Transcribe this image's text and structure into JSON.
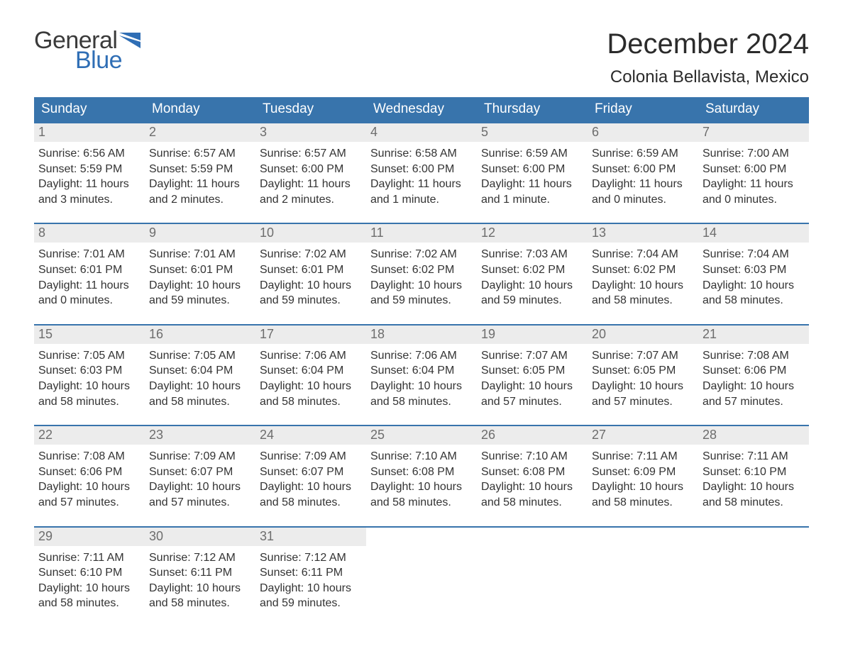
{
  "brand": {
    "part1": "General",
    "part2": "Blue",
    "color_dark": "#3a3a3a",
    "color_blue": "#2f6eb5"
  },
  "title": "December 2024",
  "location": "Colonia Bellavista, Mexico",
  "colors": {
    "header_bg": "#3874ac",
    "header_text": "#ffffff",
    "daynum_bg": "#ececec",
    "daynum_text": "#6d6d6d",
    "body_text": "#333333",
    "row_border": "#3874ac",
    "page_bg": "#ffffff"
  },
  "typography": {
    "title_fontsize": 40,
    "location_fontsize": 24,
    "header_fontsize": 19,
    "daynum_fontsize": 18,
    "body_fontsize": 16,
    "logo_fontsize": 34
  },
  "layout": {
    "columns": 7,
    "rows": 5,
    "cell_flex": 1
  },
  "weekdays": [
    "Sunday",
    "Monday",
    "Tuesday",
    "Wednesday",
    "Thursday",
    "Friday",
    "Saturday"
  ],
  "weeks": [
    [
      {
        "n": "1",
        "sunrise": "Sunrise: 6:56 AM",
        "sunset": "Sunset: 5:59 PM",
        "dl1": "Daylight: 11 hours",
        "dl2": "and 3 minutes."
      },
      {
        "n": "2",
        "sunrise": "Sunrise: 6:57 AM",
        "sunset": "Sunset: 5:59 PM",
        "dl1": "Daylight: 11 hours",
        "dl2": "and 2 minutes."
      },
      {
        "n": "3",
        "sunrise": "Sunrise: 6:57 AM",
        "sunset": "Sunset: 6:00 PM",
        "dl1": "Daylight: 11 hours",
        "dl2": "and 2 minutes."
      },
      {
        "n": "4",
        "sunrise": "Sunrise: 6:58 AM",
        "sunset": "Sunset: 6:00 PM",
        "dl1": "Daylight: 11 hours",
        "dl2": "and 1 minute."
      },
      {
        "n": "5",
        "sunrise": "Sunrise: 6:59 AM",
        "sunset": "Sunset: 6:00 PM",
        "dl1": "Daylight: 11 hours",
        "dl2": "and 1 minute."
      },
      {
        "n": "6",
        "sunrise": "Sunrise: 6:59 AM",
        "sunset": "Sunset: 6:00 PM",
        "dl1": "Daylight: 11 hours",
        "dl2": "and 0 minutes."
      },
      {
        "n": "7",
        "sunrise": "Sunrise: 7:00 AM",
        "sunset": "Sunset: 6:00 PM",
        "dl1": "Daylight: 11 hours",
        "dl2": "and 0 minutes."
      }
    ],
    [
      {
        "n": "8",
        "sunrise": "Sunrise: 7:01 AM",
        "sunset": "Sunset: 6:01 PM",
        "dl1": "Daylight: 11 hours",
        "dl2": "and 0 minutes."
      },
      {
        "n": "9",
        "sunrise": "Sunrise: 7:01 AM",
        "sunset": "Sunset: 6:01 PM",
        "dl1": "Daylight: 10 hours",
        "dl2": "and 59 minutes."
      },
      {
        "n": "10",
        "sunrise": "Sunrise: 7:02 AM",
        "sunset": "Sunset: 6:01 PM",
        "dl1": "Daylight: 10 hours",
        "dl2": "and 59 minutes."
      },
      {
        "n": "11",
        "sunrise": "Sunrise: 7:02 AM",
        "sunset": "Sunset: 6:02 PM",
        "dl1": "Daylight: 10 hours",
        "dl2": "and 59 minutes."
      },
      {
        "n": "12",
        "sunrise": "Sunrise: 7:03 AM",
        "sunset": "Sunset: 6:02 PM",
        "dl1": "Daylight: 10 hours",
        "dl2": "and 59 minutes."
      },
      {
        "n": "13",
        "sunrise": "Sunrise: 7:04 AM",
        "sunset": "Sunset: 6:02 PM",
        "dl1": "Daylight: 10 hours",
        "dl2": "and 58 minutes."
      },
      {
        "n": "14",
        "sunrise": "Sunrise: 7:04 AM",
        "sunset": "Sunset: 6:03 PM",
        "dl1": "Daylight: 10 hours",
        "dl2": "and 58 minutes."
      }
    ],
    [
      {
        "n": "15",
        "sunrise": "Sunrise: 7:05 AM",
        "sunset": "Sunset: 6:03 PM",
        "dl1": "Daylight: 10 hours",
        "dl2": "and 58 minutes."
      },
      {
        "n": "16",
        "sunrise": "Sunrise: 7:05 AM",
        "sunset": "Sunset: 6:04 PM",
        "dl1": "Daylight: 10 hours",
        "dl2": "and 58 minutes."
      },
      {
        "n": "17",
        "sunrise": "Sunrise: 7:06 AM",
        "sunset": "Sunset: 6:04 PM",
        "dl1": "Daylight: 10 hours",
        "dl2": "and 58 minutes."
      },
      {
        "n": "18",
        "sunrise": "Sunrise: 7:06 AM",
        "sunset": "Sunset: 6:04 PM",
        "dl1": "Daylight: 10 hours",
        "dl2": "and 58 minutes."
      },
      {
        "n": "19",
        "sunrise": "Sunrise: 7:07 AM",
        "sunset": "Sunset: 6:05 PM",
        "dl1": "Daylight: 10 hours",
        "dl2": "and 57 minutes."
      },
      {
        "n": "20",
        "sunrise": "Sunrise: 7:07 AM",
        "sunset": "Sunset: 6:05 PM",
        "dl1": "Daylight: 10 hours",
        "dl2": "and 57 minutes."
      },
      {
        "n": "21",
        "sunrise": "Sunrise: 7:08 AM",
        "sunset": "Sunset: 6:06 PM",
        "dl1": "Daylight: 10 hours",
        "dl2": "and 57 minutes."
      }
    ],
    [
      {
        "n": "22",
        "sunrise": "Sunrise: 7:08 AM",
        "sunset": "Sunset: 6:06 PM",
        "dl1": "Daylight: 10 hours",
        "dl2": "and 57 minutes."
      },
      {
        "n": "23",
        "sunrise": "Sunrise: 7:09 AM",
        "sunset": "Sunset: 6:07 PM",
        "dl1": "Daylight: 10 hours",
        "dl2": "and 57 minutes."
      },
      {
        "n": "24",
        "sunrise": "Sunrise: 7:09 AM",
        "sunset": "Sunset: 6:07 PM",
        "dl1": "Daylight: 10 hours",
        "dl2": "and 58 minutes."
      },
      {
        "n": "25",
        "sunrise": "Sunrise: 7:10 AM",
        "sunset": "Sunset: 6:08 PM",
        "dl1": "Daylight: 10 hours",
        "dl2": "and 58 minutes."
      },
      {
        "n": "26",
        "sunrise": "Sunrise: 7:10 AM",
        "sunset": "Sunset: 6:08 PM",
        "dl1": "Daylight: 10 hours",
        "dl2": "and 58 minutes."
      },
      {
        "n": "27",
        "sunrise": "Sunrise: 7:11 AM",
        "sunset": "Sunset: 6:09 PM",
        "dl1": "Daylight: 10 hours",
        "dl2": "and 58 minutes."
      },
      {
        "n": "28",
        "sunrise": "Sunrise: 7:11 AM",
        "sunset": "Sunset: 6:10 PM",
        "dl1": "Daylight: 10 hours",
        "dl2": "and 58 minutes."
      }
    ],
    [
      {
        "n": "29",
        "sunrise": "Sunrise: 7:11 AM",
        "sunset": "Sunset: 6:10 PM",
        "dl1": "Daylight: 10 hours",
        "dl2": "and 58 minutes."
      },
      {
        "n": "30",
        "sunrise": "Sunrise: 7:12 AM",
        "sunset": "Sunset: 6:11 PM",
        "dl1": "Daylight: 10 hours",
        "dl2": "and 58 minutes."
      },
      {
        "n": "31",
        "sunrise": "Sunrise: 7:12 AM",
        "sunset": "Sunset: 6:11 PM",
        "dl1": "Daylight: 10 hours",
        "dl2": "and 59 minutes."
      },
      null,
      null,
      null,
      null
    ]
  ]
}
